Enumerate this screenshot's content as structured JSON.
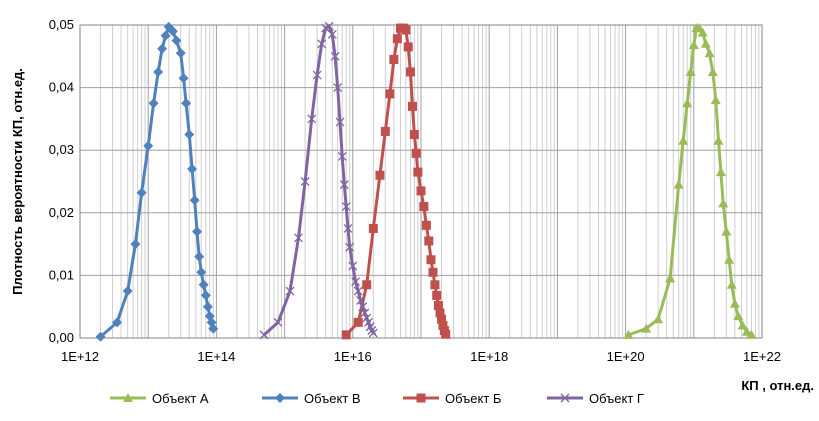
{
  "chart_data": {
    "type": "line",
    "title": "",
    "xlabel": "КП , отн.ед.",
    "ylabel": "Плотность вероятности КП, отн.ед.",
    "xscale": "log",
    "xlim": [
      1000000000000.0,
      1e+22
    ],
    "ylim": [
      0,
      0.05
    ],
    "x_ticks": [
      "1E+12",
      "1E+14",
      "1E+16",
      "1E+18",
      "1E+20",
      "1E+22"
    ],
    "y_ticks": [
      "0,00",
      "0,01",
      "0,02",
      "0,03",
      "0,04",
      "0,05"
    ],
    "grid": true,
    "legend": "bottom",
    "series": [
      {
        "name": "Объект А",
        "color": "#9BBB59",
        "marker": "triangle",
        "x": [
          1.1e+20,
          2e+20,
          3e+20,
          4.5e+20,
          6e+20,
          7e+20,
          8e+20,
          9e+20,
          1e+21,
          1.1e+21,
          1.2e+21,
          1.35e+21,
          1.5e+21,
          1.7e+21,
          1.9e+21,
          2.1e+21,
          2.3e+21,
          2.5e+21,
          2.7e+21,
          3e+21,
          3.3e+21,
          3.6e+21,
          4e+21,
          4.5e+21,
          5.2e+21,
          6e+21,
          7e+21
        ],
        "y": [
          0.0005,
          0.0015,
          0.003,
          0.0095,
          0.0245,
          0.0315,
          0.0375,
          0.0425,
          0.0468,
          0.0495,
          0.0495,
          0.0488,
          0.047,
          0.0455,
          0.0425,
          0.038,
          0.0315,
          0.0265,
          0.0215,
          0.017,
          0.0125,
          0.0085,
          0.0055,
          0.0035,
          0.002,
          0.001,
          0.0005
        ]
      },
      {
        "name": "Объект В",
        "color": "#4F81BD",
        "marker": "diamond",
        "x": [
          2000000000000.0,
          3500000000000.0,
          5000000000000.0,
          6500000000000.0,
          8000000000000.0,
          10000000000000.0,
          12000000000000.0,
          14000000000000.0,
          16000000000000.0,
          18000000000000.0,
          20000000000000.0,
          23000000000000.0,
          26000000000000.0,
          30000000000000.0,
          33000000000000.0,
          36000000000000.0,
          40000000000000.0,
          44000000000000.0,
          48000000000000.0,
          52000000000000.0,
          56000000000000.0,
          60000000000000.0,
          65000000000000.0,
          70000000000000.0,
          75000000000000.0,
          80000000000000.0,
          85000000000000.0,
          90000000000000.0
        ],
        "y": [
          0.0002,
          0.0025,
          0.0075,
          0.015,
          0.0232,
          0.0307,
          0.0375,
          0.0425,
          0.0462,
          0.0483,
          0.0497,
          0.049,
          0.0475,
          0.0455,
          0.0415,
          0.0375,
          0.0325,
          0.027,
          0.022,
          0.017,
          0.013,
          0.0105,
          0.0085,
          0.0068,
          0.005,
          0.0035,
          0.0025,
          0.0015
        ]
      },
      {
        "name": "Объект Б",
        "color": "#C0504D",
        "marker": "square",
        "x": [
          8000000000000000.0,
          1.2e+16,
          1.6e+16,
          2e+16,
          2.5e+16,
          3e+16,
          3.5e+16,
          4e+16,
          4.5e+16,
          5e+16,
          5.5e+16,
          6e+16,
          6.5e+16,
          7e+16,
          7.5e+16,
          8e+16,
          8.5e+16,
          9e+16,
          1e+17,
          1.1e+17,
          1.2e+17,
          1.3e+17,
          1.4e+17,
          1.5e+17,
          1.6e+17,
          1.7e+17,
          1.8e+17,
          1.9e+17,
          2e+17,
          2.1e+17,
          2.2e+17,
          2.3e+17
        ],
        "y": [
          0.0005,
          0.0025,
          0.0085,
          0.0175,
          0.026,
          0.033,
          0.039,
          0.0445,
          0.0478,
          0.0495,
          0.0495,
          0.0492,
          0.0465,
          0.0425,
          0.037,
          0.0325,
          0.0295,
          0.0265,
          0.0235,
          0.021,
          0.018,
          0.0155,
          0.0125,
          0.0105,
          0.0085,
          0.0068,
          0.0052,
          0.004,
          0.003,
          0.002,
          0.0012,
          0.0006
        ]
      },
      {
        "name": "Объект Г",
        "color": "#8064A2",
        "marker": "x",
        "x": [
          500000000000000.0,
          800000000000000.0,
          1200000000000000.0,
          1600000000000000.0,
          2000000000000000.0,
          2500000000000000.0,
          3000000000000000.0,
          3500000000000000.0,
          4000000000000000.0,
          4500000000000000.0,
          5000000000000000.0,
          5500000000000000.0,
          6000000000000000.0,
          6500000000000000.0,
          7000000000000000.0,
          7500000000000000.0,
          8000000000000000.0,
          8500000000000000.0,
          9000000000000000.0,
          1e+16,
          1.1e+16,
          1.2e+16,
          1.3e+16,
          1.4e+16,
          1.5e+16,
          1.6e+16,
          1.7e+16,
          1.8e+16,
          1.9e+16,
          2e+16
        ],
        "y": [
          0.0005,
          0.0025,
          0.0075,
          0.016,
          0.025,
          0.035,
          0.042,
          0.047,
          0.0495,
          0.0498,
          0.0485,
          0.045,
          0.04,
          0.0345,
          0.029,
          0.0245,
          0.021,
          0.0175,
          0.0145,
          0.0115,
          0.009,
          0.0075,
          0.006,
          0.005,
          0.004,
          0.0032,
          0.0025,
          0.0018,
          0.0012,
          0.0008
        ]
      }
    ]
  }
}
